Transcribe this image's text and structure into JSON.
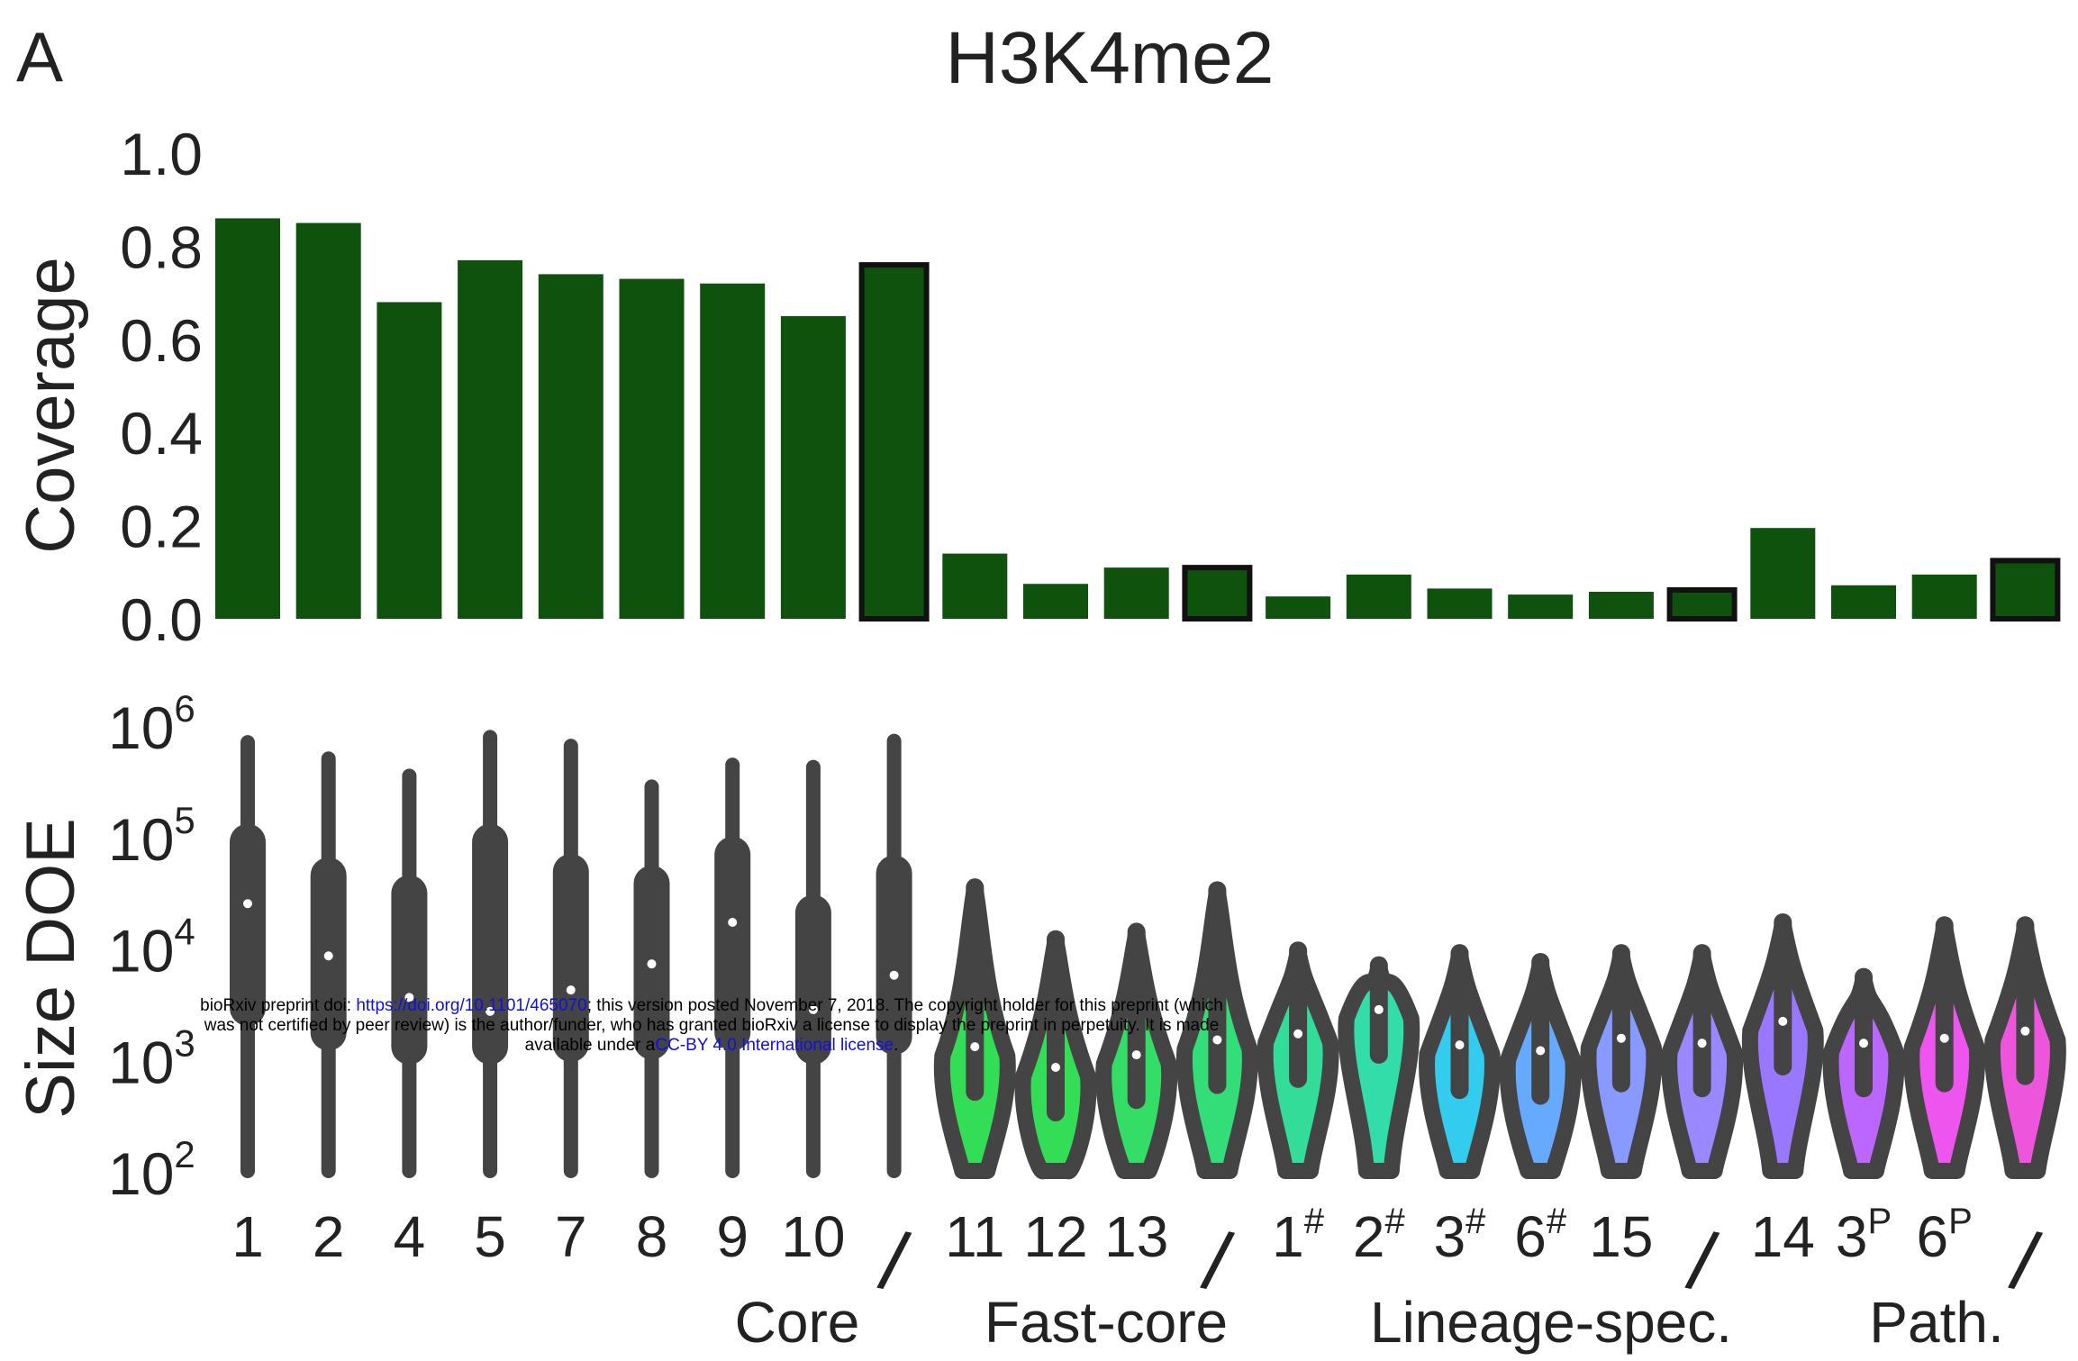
{
  "panel_label": "A",
  "notice": {
    "line1_a": "bioRxiv preprint doi: ",
    "doi_link": "https://doi.org/10.1101/465070",
    "line1_b": "; this version posted November 7, 2018. The copyright holder for this preprint (which",
    "line2": "was not certified by peer review) is the author/funder, who has granted bioRxiv a license to display the preprint in perpetuity. It is made",
    "line3_a": "available under a",
    "license_link": "CC-BY 4.0 International license",
    "line3_b": "."
  },
  "colors": {
    "bar": "#0e520e",
    "violin_dark": "#444444",
    "median": "#ffffff"
  },
  "chart_data": [
    {
      "type": "bar",
      "title": "H3K4me2",
      "ylabel": "Coverage",
      "ylim": [
        0,
        1.0
      ],
      "yticks": [
        "0.0",
        "0.2",
        "0.4",
        "0.6",
        "0.8",
        "1.0"
      ],
      "grid": false,
      "categories": [
        "1",
        "2",
        "4",
        "5",
        "7",
        "8",
        "9",
        "10",
        "Core",
        "11",
        "12",
        "13",
        "Fast-core",
        "1#",
        "2#",
        "3#",
        "6#",
        "15",
        "Lineage-spec.",
        "14",
        "3P",
        "6P",
        "Path."
      ],
      "values": [
        0.86,
        0.85,
        0.68,
        0.77,
        0.74,
        0.73,
        0.72,
        0.65,
        0.76,
        0.14,
        0.075,
        0.11,
        0.11,
        0.048,
        0.095,
        0.065,
        0.052,
        0.058,
        0.062,
        0.195,
        0.072,
        0.095,
        0.125
      ],
      "group_summary": [
        false,
        false,
        false,
        false,
        false,
        false,
        false,
        false,
        true,
        false,
        false,
        false,
        true,
        false,
        false,
        false,
        false,
        false,
        true,
        false,
        false,
        false,
        true
      ]
    },
    {
      "type": "violin",
      "ylabel": "Size DOE",
      "yscale": "log",
      "ylim": [
        100,
        1000000
      ],
      "yticks": [
        {
          "base": "10",
          "exp": "2"
        },
        {
          "base": "10",
          "exp": "3"
        },
        {
          "base": "10",
          "exp": "4"
        },
        {
          "base": "10",
          "exp": "5"
        },
        {
          "base": "10",
          "exp": "6"
        }
      ],
      "x_tick_labels": [
        {
          "main": "1",
          "sup": ""
        },
        {
          "main": "2",
          "sup": ""
        },
        {
          "main": "4",
          "sup": ""
        },
        {
          "main": "5",
          "sup": ""
        },
        {
          "main": "7",
          "sup": ""
        },
        {
          "main": "8",
          "sup": ""
        },
        {
          "main": "9",
          "sup": ""
        },
        {
          "main": "10",
          "sup": ""
        },
        {
          "main": "/",
          "sup": ""
        },
        {
          "main": "11",
          "sup": ""
        },
        {
          "main": "12",
          "sup": ""
        },
        {
          "main": "13",
          "sup": ""
        },
        {
          "main": "/",
          "sup": ""
        },
        {
          "main": "1",
          "sup": "#"
        },
        {
          "main": "2",
          "sup": "#"
        },
        {
          "main": "3",
          "sup": "#"
        },
        {
          "main": "6",
          "sup": "#"
        },
        {
          "main": "15",
          "sup": ""
        },
        {
          "main": "/",
          "sup": ""
        },
        {
          "main": "14",
          "sup": ""
        },
        {
          "main": "3",
          "sup": "P"
        },
        {
          "main": "6",
          "sup": "P"
        },
        {
          "main": "/",
          "sup": ""
        }
      ],
      "group_labels": [
        "Core",
        "Fast-core",
        "Lineage-spec.",
        "Path."
      ],
      "violins": [
        {
          "max": 700000,
          "q3": 130000,
          "median": 25000,
          "q1": 2000,
          "min": 100,
          "fill": "#444444"
        },
        {
          "max": 500000,
          "q3": 65000,
          "median": 8500,
          "q1": 1200,
          "min": 100,
          "fill": "#444444"
        },
        {
          "max": 350000,
          "q3": 45000,
          "median": 3600,
          "q1": 900,
          "min": 100,
          "fill": "#444444"
        },
        {
          "max": 780000,
          "q3": 130000,
          "median": 2700,
          "q1": 900,
          "min": 100,
          "fill": "#444444"
        },
        {
          "max": 650000,
          "q3": 70000,
          "median": 4200,
          "q1": 950,
          "min": 100,
          "fill": "#444444"
        },
        {
          "max": 280000,
          "q3": 55000,
          "median": 7200,
          "q1": 1000,
          "min": 100,
          "fill": "#444444"
        },
        {
          "max": 440000,
          "q3": 100000,
          "median": 17000,
          "q1": 1200,
          "min": 100,
          "fill": "#444444"
        },
        {
          "max": 420000,
          "q3": 30000,
          "median": 2800,
          "q1": 900,
          "min": 100,
          "fill": "#444444"
        },
        {
          "max": 720000,
          "q3": 68000,
          "median": 5700,
          "q1": 1100,
          "min": 100,
          "fill": "#444444"
        },
        {
          "max": 35000,
          "median": 1300,
          "min": 100,
          "fill": "#33dd55"
        },
        {
          "max": 12000,
          "median": 850,
          "min": 100,
          "fill": "#33dd55"
        },
        {
          "max": 14000,
          "median": 1100,
          "min": 100,
          "fill": "#33dd66"
        },
        {
          "max": 33000,
          "median": 1500,
          "min": 100,
          "fill": "#33dd77"
        },
        {
          "max": 9500,
          "median": 1700,
          "min": 100,
          "fill": "#33dd99"
        },
        {
          "max": 7000,
          "median": 2800,
          "min": 100,
          "fill": "#33ddaa"
        },
        {
          "max": 9000,
          "median": 1350,
          "min": 100,
          "fill": "#33ccee"
        },
        {
          "max": 7500,
          "median": 1200,
          "min": 100,
          "fill": "#66aaff"
        },
        {
          "max": 9000,
          "median": 1550,
          "min": 100,
          "fill": "#8899ff"
        },
        {
          "max": 9000,
          "median": 1400,
          "min": 100,
          "fill": "#9988ff"
        },
        {
          "max": 17000,
          "median": 2200,
          "min": 100,
          "fill": "#9977ff"
        },
        {
          "max": 5500,
          "median": 1400,
          "min": 100,
          "fill": "#bb66ff"
        },
        {
          "max": 16000,
          "median": 1550,
          "min": 100,
          "fill": "#ee55ee"
        },
        {
          "max": 16000,
          "median": 1800,
          "min": 100,
          "fill": "#ee55dd"
        }
      ]
    }
  ]
}
